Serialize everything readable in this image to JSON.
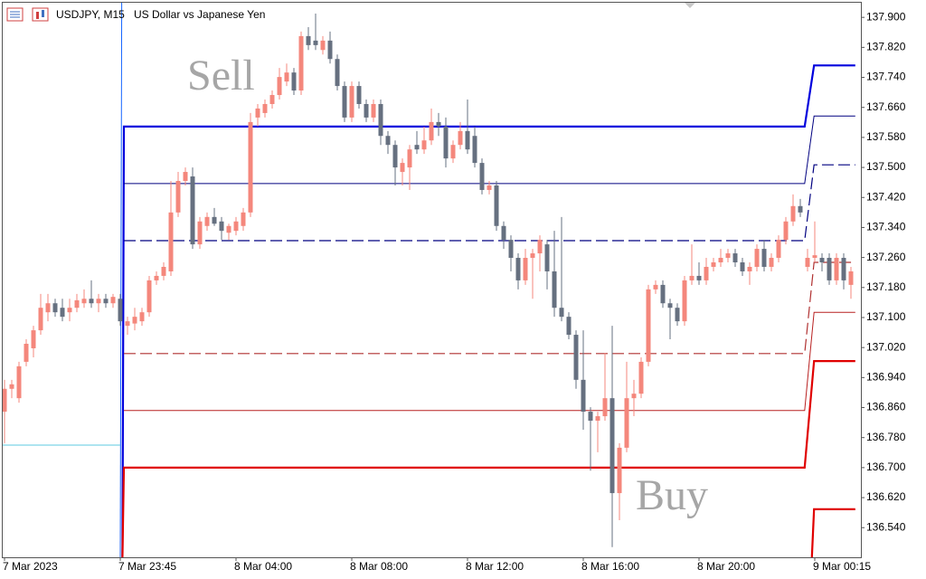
{
  "chart_data": {
    "type": "candlestick",
    "symbol": "USDJPY, M15",
    "description": "US Dollar vs Japanese Yen",
    "annotations": [
      "Sell",
      "Buy"
    ],
    "up_color": "#f4877c",
    "down_color": "#667080",
    "ylim": [
      136.461,
      137.939
    ],
    "yticks": [
      {
        "value": 137.9,
        "label": "137.900"
      },
      {
        "value": 137.82,
        "label": "137.820"
      },
      {
        "value": 137.74,
        "label": "137.740"
      },
      {
        "value": 137.66,
        "label": "137.660"
      },
      {
        "value": 137.58,
        "label": "137.580"
      },
      {
        "value": 137.5,
        "label": "137.500"
      },
      {
        "value": 137.42,
        "label": "137.420"
      },
      {
        "value": 137.34,
        "label": "137.340"
      },
      {
        "value": 137.26,
        "label": "137.260"
      },
      {
        "value": 137.18,
        "label": "137.180"
      },
      {
        "value": 137.1,
        "label": "137.100"
      },
      {
        "value": 137.02,
        "label": "137.020"
      },
      {
        "value": 136.94,
        "label": "136.940"
      },
      {
        "value": 136.86,
        "label": "136.860"
      },
      {
        "value": 136.78,
        "label": "136.780"
      },
      {
        "value": 136.7,
        "label": "136.700"
      },
      {
        "value": 136.62,
        "label": "136.620"
      },
      {
        "value": 136.54,
        "label": "136.540"
      }
    ],
    "categories": [
      "7 Mar 2023",
      null,
      null,
      null,
      null,
      null,
      null,
      null,
      null,
      null,
      null,
      null,
      null,
      null,
      null,
      null,
      "7 Mar 23:45",
      null,
      null,
      null,
      null,
      null,
      null,
      null,
      null,
      null,
      null,
      null,
      null,
      null,
      null,
      null,
      "8 Mar 04:00",
      null,
      null,
      null,
      null,
      null,
      null,
      null,
      null,
      null,
      null,
      null,
      null,
      null,
      null,
      null,
      "8 Mar 08:00",
      null,
      null,
      null,
      null,
      null,
      null,
      null,
      null,
      null,
      null,
      null,
      null,
      null,
      null,
      null,
      "8 Mar 12:00",
      null,
      null,
      null,
      null,
      null,
      null,
      null,
      null,
      null,
      null,
      null,
      null,
      null,
      null,
      null,
      "8 Mar 16:00",
      null,
      null,
      null,
      null,
      null,
      null,
      null,
      null,
      null,
      null,
      null,
      null,
      null,
      null,
      null,
      "8 Mar 20:00",
      null,
      null,
      null,
      null,
      null,
      null,
      null,
      null,
      null,
      null,
      null,
      null,
      null,
      null,
      null,
      "9 Mar 00:15",
      null,
      null,
      null,
      null,
      null
    ],
    "ohlc": [
      [
        136.849,
        136.934,
        136.765,
        136.91
      ],
      [
        136.91,
        136.934,
        136.885,
        136.922
      ],
      [
        136.885,
        136.982,
        136.873,
        136.97
      ],
      [
        136.982,
        137.042,
        136.97,
        137.03
      ],
      [
        137.018,
        137.078,
        136.994,
        137.066
      ],
      [
        137.066,
        137.163,
        137.054,
        137.126
      ],
      [
        137.114,
        137.163,
        137.09,
        137.138
      ],
      [
        137.138,
        137.15,
        137.102,
        137.114
      ],
      [
        137.126,
        137.15,
        137.09,
        137.102
      ],
      [
        137.114,
        137.15,
        137.09,
        137.126
      ],
      [
        137.126,
        137.163,
        137.114,
        137.146
      ],
      [
        137.138,
        137.175,
        137.126,
        137.15
      ],
      [
        137.15,
        137.199,
        137.126,
        137.138
      ],
      [
        137.138,
        137.163,
        137.114,
        137.15
      ],
      [
        137.15,
        137.163,
        137.126,
        137.138
      ],
      [
        137.138,
        137.163,
        137.126,
        137.155
      ],
      [
        137.15,
        137.163,
        137.078,
        137.09
      ],
      [
        137.078,
        137.102,
        137.054,
        137.09
      ],
      [
        137.084,
        137.126,
        137.066,
        137.102
      ],
      [
        137.09,
        137.126,
        137.078,
        137.114
      ],
      [
        137.114,
        137.211,
        137.102,
        137.199
      ],
      [
        137.199,
        137.223,
        137.187,
        137.211
      ],
      [
        137.211,
        137.247,
        137.199,
        137.235
      ],
      [
        137.223,
        137.464,
        137.211,
        137.38
      ],
      [
        137.38,
        137.488,
        137.368,
        137.464
      ],
      [
        137.464,
        137.5,
        137.452,
        137.488
      ],
      [
        137.476,
        137.5,
        137.283,
        137.295
      ],
      [
        137.295,
        137.368,
        137.283,
        137.356
      ],
      [
        137.344,
        137.38,
        137.331,
        137.368
      ],
      [
        137.368,
        137.392,
        137.344,
        137.35
      ],
      [
        137.356,
        137.368,
        137.307,
        137.331
      ],
      [
        137.326,
        137.35,
        137.307,
        137.344
      ],
      [
        137.331,
        137.368,
        137.319,
        137.356
      ],
      [
        137.344,
        137.392,
        137.331,
        137.38
      ],
      [
        137.38,
        137.645,
        137.368,
        137.621
      ],
      [
        137.633,
        137.669,
        137.609,
        137.657
      ],
      [
        137.645,
        137.681,
        137.633,
        137.669
      ],
      [
        137.669,
        137.705,
        137.657,
        137.693
      ],
      [
        137.693,
        137.765,
        137.681,
        137.741
      ],
      [
        137.729,
        137.777,
        137.717,
        137.753
      ],
      [
        137.753,
        137.765,
        137.693,
        137.705
      ],
      [
        137.705,
        137.862,
        137.693,
        137.85
      ],
      [
        137.85,
        137.874,
        137.813,
        137.826
      ],
      [
        137.838,
        137.91,
        137.813,
        137.826
      ],
      [
        137.813,
        137.85,
        137.801,
        137.838
      ],
      [
        137.838,
        137.862,
        137.777,
        137.789
      ],
      [
        137.789,
        137.801,
        137.705,
        137.717
      ],
      [
        137.717,
        137.729,
        137.621,
        137.633
      ],
      [
        137.633,
        137.729,
        137.621,
        137.717
      ],
      [
        137.717,
        137.729,
        137.657,
        137.669
      ],
      [
        137.669,
        137.681,
        137.621,
        137.633
      ],
      [
        137.633,
        137.681,
        137.621,
        137.669
      ],
      [
        137.669,
        137.681,
        137.56,
        137.584
      ],
      [
        137.584,
        137.597,
        137.536,
        137.56
      ],
      [
        137.56,
        137.572,
        137.452,
        137.5
      ],
      [
        137.488,
        137.524,
        137.452,
        137.512
      ],
      [
        137.5,
        137.56,
        137.44,
        137.548
      ],
      [
        137.56,
        137.597,
        137.536,
        137.548
      ],
      [
        137.548,
        137.609,
        137.536,
        137.572
      ],
      [
        137.572,
        137.657,
        137.56,
        137.621
      ],
      [
        137.621,
        137.645,
        137.584,
        137.609
      ],
      [
        137.609,
        137.633,
        137.5,
        137.524
      ],
      [
        137.524,
        137.572,
        137.512,
        137.56
      ],
      [
        137.56,
        137.621,
        137.548,
        137.597
      ],
      [
        137.597,
        137.681,
        137.536,
        137.548
      ],
      [
        137.584,
        137.609,
        137.5,
        137.512
      ],
      [
        137.512,
        137.524,
        137.428,
        137.44
      ],
      [
        137.44,
        137.464,
        137.428,
        137.452
      ],
      [
        137.452,
        137.464,
        137.331,
        137.344
      ],
      [
        137.344,
        137.356,
        137.283,
        137.307
      ],
      [
        137.307,
        137.319,
        137.223,
        137.259
      ],
      [
        137.259,
        137.271,
        137.175,
        137.199
      ],
      [
        137.199,
        137.283,
        137.187,
        137.259
      ],
      [
        137.259,
        137.283,
        137.15,
        137.271
      ],
      [
        137.271,
        137.319,
        137.223,
        137.307
      ],
      [
        137.295,
        137.307,
        137.175,
        137.223
      ],
      [
        137.223,
        137.331,
        137.102,
        137.126
      ],
      [
        137.126,
        137.368,
        137.09,
        137.102
      ],
      [
        137.102,
        137.114,
        137.042,
        137.054
      ],
      [
        137.054,
        137.066,
        136.91,
        136.934
      ],
      [
        136.934,
        137.066,
        136.801,
        136.849
      ],
      [
        136.849,
        136.861,
        136.692,
        136.825
      ],
      [
        136.825,
        136.849,
        136.741,
        136.837
      ],
      [
        136.837,
        137.006,
        136.825,
        136.885
      ],
      [
        136.885,
        137.078,
        136.488,
        136.632
      ],
      [
        136.632,
        136.765,
        136.56,
        136.753
      ],
      [
        136.753,
        136.982,
        136.741,
        136.885
      ],
      [
        136.885,
        136.934,
        136.837,
        136.897
      ],
      [
        136.897,
        136.994,
        136.885,
        136.982
      ],
      [
        136.982,
        137.187,
        136.97,
        137.175
      ],
      [
        137.175,
        137.199,
        137.163,
        137.187
      ],
      [
        137.187,
        137.199,
        137.126,
        137.138
      ],
      [
        137.138,
        137.15,
        137.042,
        137.126
      ],
      [
        137.126,
        137.138,
        137.078,
        137.09
      ],
      [
        137.09,
        137.211,
        137.078,
        137.199
      ],
      [
        137.199,
        137.295,
        137.187,
        137.211
      ],
      [
        137.211,
        137.247,
        137.187,
        137.199
      ],
      [
        137.199,
        137.259,
        137.187,
        137.235
      ],
      [
        137.235,
        137.259,
        137.223,
        137.247
      ],
      [
        137.247,
        137.283,
        137.235,
        137.259
      ],
      [
        137.259,
        137.283,
        137.247,
        137.271
      ],
      [
        137.271,
        137.283,
        137.235,
        137.247
      ],
      [
        137.247,
        137.259,
        137.211,
        137.223
      ],
      [
        137.223,
        137.247,
        137.187,
        137.235
      ],
      [
        137.235,
        137.295,
        137.223,
        137.283
      ],
      [
        137.283,
        137.307,
        137.223,
        137.235
      ],
      [
        137.235,
        137.271,
        137.223,
        137.259
      ],
      [
        137.259,
        137.319,
        137.247,
        137.307
      ],
      [
        137.307,
        137.368,
        137.295,
        137.356
      ],
      [
        137.356,
        137.428,
        137.344,
        137.397
      ],
      [
        137.397,
        137.416,
        137.368,
        137.38
      ],
      [
        137.235,
        137.283,
        137.223,
        137.259
      ],
      [
        137.259,
        137.356,
        137.247,
        137.266
      ],
      [
        137.259,
        137.271,
        137.223,
        137.247
      ],
      [
        137.259,
        137.271,
        137.187,
        137.199
      ],
      [
        137.199,
        137.271,
        137.187,
        137.259
      ],
      [
        137.259,
        137.271,
        137.175,
        137.199
      ],
      [
        137.187,
        137.235,
        137.15,
        137.223
      ]
    ],
    "lines": [
      {
        "color": "#0000dd",
        "style": "thick",
        "points": [
          [
            16.3,
            136.461
          ],
          [
            16.5,
            137.609
          ],
          [
            110.6,
            137.609
          ],
          [
            111.9,
            137.772
          ],
          [
            117.6,
            137.772
          ]
        ]
      },
      {
        "color": "#000080",
        "style": "thin",
        "points": [
          [
            16.5,
            137.457
          ],
          [
            110.6,
            137.457
          ],
          [
            111.9,
            137.637
          ],
          [
            117.6,
            137.637
          ]
        ]
      },
      {
        "color": "#000080",
        "style": "dashed",
        "points": [
          [
            16.5,
            137.305
          ],
          [
            110.6,
            137.305
          ],
          [
            111.9,
            137.507
          ],
          [
            117.6,
            137.507
          ]
        ]
      },
      {
        "color": "#1565ff",
        "style": "thin",
        "points": [
          [
            16,
            136.461
          ],
          [
            16.2,
            137.939
          ]
        ]
      },
      {
        "color": "#b03030",
        "style": "dashed",
        "points": [
          [
            16.5,
            137.004
          ],
          [
            110.6,
            137.004
          ],
          [
            111.9,
            137.247
          ],
          [
            117.6,
            137.247
          ]
        ]
      },
      {
        "color": "#b82020",
        "style": "thin",
        "points": [
          [
            16.5,
            136.852
          ],
          [
            110.6,
            136.852
          ],
          [
            111.9,
            137.114
          ],
          [
            117.6,
            137.114
          ]
        ]
      },
      {
        "color": "#e00000",
        "style": "thick",
        "points": [
          [
            16.3,
            136.461
          ],
          [
            16.5,
            136.7
          ],
          [
            110.6,
            136.7
          ],
          [
            111.9,
            136.984
          ],
          [
            117.6,
            136.984
          ]
        ]
      },
      {
        "color": "#e00000",
        "style": "thick",
        "points": [
          [
            111.6,
            136.461
          ],
          [
            111.9,
            136.589
          ],
          [
            117.6,
            136.589
          ]
        ]
      },
      {
        "color": "#5ec8e0",
        "style": "thin",
        "points": [
          [
            -0.25,
            136.76
          ],
          [
            16,
            136.76
          ]
        ]
      }
    ]
  }
}
